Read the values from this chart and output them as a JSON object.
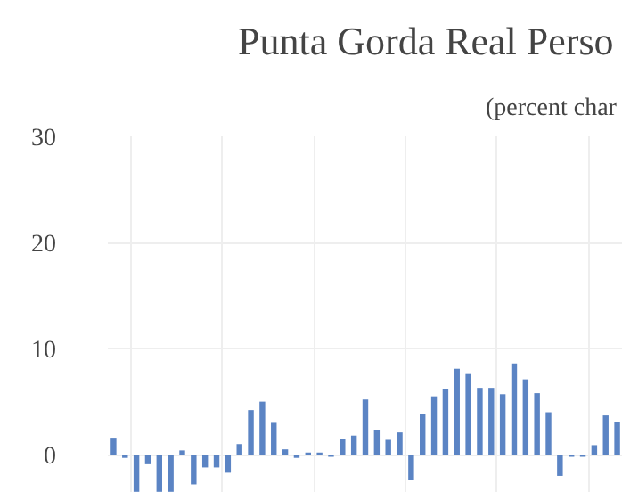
{
  "chart_data": {
    "type": "bar",
    "title": "Punta Gorda Real Perso",
    "subtitle": "(percent char",
    "categories": [
      null,
      null,
      null,
      null,
      null,
      null,
      null,
      null,
      null,
      null,
      null,
      null,
      null,
      null,
      null,
      null,
      null,
      null,
      null,
      null,
      null,
      null,
      null,
      null,
      null,
      null,
      null,
      null,
      null,
      null,
      null,
      null,
      null,
      null,
      null,
      null,
      null,
      null,
      null,
      null,
      null,
      null,
      null,
      null,
      null
    ],
    "values": [
      1.6,
      -0.3,
      -3.5,
      -0.9,
      -3.5,
      -3.5,
      0.4,
      -2.8,
      -1.2,
      -1.2,
      -1.7,
      1.0,
      4.2,
      5.0,
      3.0,
      0.5,
      -0.3,
      0.2,
      0.2,
      -0.2,
      1.5,
      1.8,
      5.2,
      2.3,
      1.4,
      2.1,
      -2.4,
      3.8,
      5.5,
      6.2,
      8.1,
      7.6,
      6.3,
      6.3,
      5.7,
      8.6,
      7.1,
      5.8,
      4.0,
      -2.0,
      -0.2,
      -0.2,
      0.9,
      3.7,
      3.1
    ],
    "color": "#5b84c4",
    "ylim": [
      -3.6,
      30
    ],
    "yticks": [
      0,
      10,
      20,
      30
    ],
    "grid": true,
    "tick_labels": "y"
  }
}
